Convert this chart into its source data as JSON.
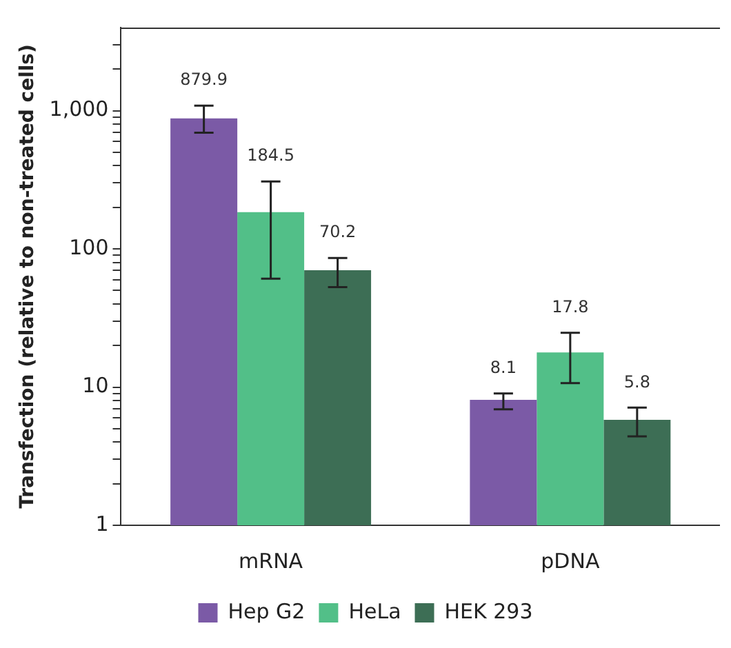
{
  "chart_data": {
    "type": "bar",
    "ylabel": "Transfection (relative to non-treated cells)",
    "categories": [
      "mRNA",
      "pDNA"
    ],
    "series": [
      {
        "name": "Hep G2",
        "color": "#7b5aa6",
        "values": [
          879.9,
          8.1
        ],
        "errors": [
          [
            693,
            1090
          ],
          [
            6.9,
            9.0
          ]
        ]
      },
      {
        "name": "HeLa",
        "color": "#52bf88",
        "values": [
          184.5,
          17.8
        ],
        "errors": [
          [
            61,
            308
          ],
          [
            10.7,
            24.7
          ]
        ]
      },
      {
        "name": "HEK 293",
        "color": "#3d6e55",
        "values": [
          70.2,
          5.8
        ],
        "errors": [
          [
            53,
            86
          ],
          [
            4.4,
            7.1
          ]
        ]
      }
    ],
    "log": "y",
    "ylim": [
      1,
      4000
    ],
    "yticks": [
      1,
      {
        "value": 2,
        "label": null
      },
      {
        "value": 3,
        "label": null
      },
      {
        "value": 4,
        "label": null
      },
      {
        "value": 5,
        "label": null
      },
      {
        "value": 6,
        "label": null
      },
      {
        "value": 7,
        "label": null
      },
      {
        "value": 8,
        "label": null
      },
      {
        "value": 9,
        "label": null
      },
      10,
      {
        "value": 20,
        "label": null
      },
      {
        "value": 30,
        "label": null
      },
      {
        "value": 40,
        "label": null
      },
      {
        "value": 50,
        "label": null
      },
      {
        "value": 60,
        "label": null
      },
      {
        "value": 70,
        "label": null
      },
      {
        "value": 80,
        "label": null
      },
      {
        "value": 90,
        "label": null
      },
      100,
      {
        "value": 200,
        "label": null
      },
      {
        "value": 300,
        "label": null
      },
      {
        "value": 400,
        "label": null
      },
      {
        "value": 500,
        "label": null
      },
      {
        "value": 600,
        "label": null
      },
      {
        "value": 700,
        "label": null
      },
      {
        "value": 800,
        "label": null
      },
      {
        "value": 900,
        "label": null
      },
      {
        "value": 1000,
        "label": "1,000"
      },
      {
        "value": 2000,
        "label": null
      },
      {
        "value": 3000,
        "label": null
      }
    ],
    "data_labels": true,
    "grid": false,
    "legend": "bottom"
  }
}
